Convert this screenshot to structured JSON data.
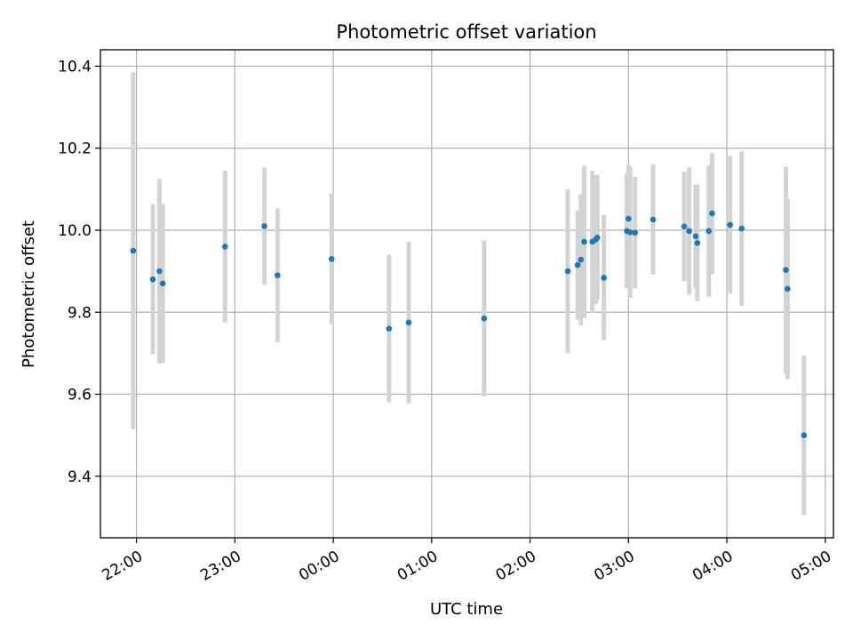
{
  "chart_data": {
    "type": "scatter",
    "title": "Photometric offset variation",
    "xlabel": "UTC time",
    "ylabel": "Photometric offset",
    "grid": true,
    "ylim": [
      9.25,
      10.44
    ],
    "xlim": [
      "21:38",
      "05:05"
    ],
    "y_ticks": [
      "9.4",
      "9.6",
      "9.8",
      "10.0",
      "10.2",
      "10.4"
    ],
    "x_ticks": [
      "22:00",
      "23:00",
      "00:00",
      "01:00",
      "02:00",
      "03:00",
      "04:00",
      "05:00"
    ],
    "colors": {
      "point": "#1f77b4",
      "errorbar": "#d3d3d3",
      "grid": "#b0b0b0"
    },
    "points": [
      {
        "x": "21:58",
        "y": 9.95,
        "err": 0.435
      },
      {
        "x": "22:10",
        "y": 9.88,
        "err": 0.183
      },
      {
        "x": "22:14",
        "y": 9.9,
        "err": 0.225
      },
      {
        "x": "22:16",
        "y": 9.87,
        "err": 0.194
      },
      {
        "x": "22:54",
        "y": 9.96,
        "err": 0.185
      },
      {
        "x": "23:18",
        "y": 10.01,
        "err": 0.143
      },
      {
        "x": "23:26",
        "y": 9.89,
        "err": 0.163
      },
      {
        "x": "23:59",
        "y": 9.93,
        "err": 0.16
      },
      {
        "x": "00:34",
        "y": 9.76,
        "err": 0.18
      },
      {
        "x": "00:46",
        "y": 9.775,
        "err": 0.197
      },
      {
        "x": "01:32",
        "y": 9.785,
        "err": 0.19
      },
      {
        "x": "02:23",
        "y": 9.9,
        "err": 0.2
      },
      {
        "x": "02:29",
        "y": 9.915,
        "err": 0.133
      },
      {
        "x": "02:31",
        "y": 9.928,
        "err": 0.16
      },
      {
        "x": "02:33",
        "y": 9.972,
        "err": 0.185
      },
      {
        "x": "02:38",
        "y": 9.972,
        "err": 0.173
      },
      {
        "x": "02:40",
        "y": 9.977,
        "err": 0.157
      },
      {
        "x": "02:41",
        "y": 9.982,
        "err": 0.153
      },
      {
        "x": "02:45",
        "y": 9.884,
        "err": 0.153
      },
      {
        "x": "02:59",
        "y": 9.998,
        "err": 0.14
      },
      {
        "x": "03:00",
        "y": 10.028,
        "err": 0.13
      },
      {
        "x": "03:01",
        "y": 9.995,
        "err": 0.16
      },
      {
        "x": "03:04",
        "y": 9.994,
        "err": 0.136
      },
      {
        "x": "03:15",
        "y": 10.026,
        "err": 0.134
      },
      {
        "x": "03:34",
        "y": 10.009,
        "err": 0.134
      },
      {
        "x": "03:37",
        "y": 9.998,
        "err": 0.155
      },
      {
        "x": "03:41",
        "y": 9.985,
        "err": 0.127
      },
      {
        "x": "03:42",
        "y": 9.969,
        "err": 0.142
      },
      {
        "x": "03:49",
        "y": 9.998,
        "err": 0.16
      },
      {
        "x": "03:51",
        "y": 10.041,
        "err": 0.148
      },
      {
        "x": "04:02",
        "y": 10.013,
        "err": 0.168
      },
      {
        "x": "04:09",
        "y": 10.004,
        "err": 0.188
      },
      {
        "x": "04:36",
        "y": 9.903,
        "err": 0.252
      },
      {
        "x": "04:37",
        "y": 9.857,
        "err": 0.22
      },
      {
        "x": "04:47",
        "y": 9.5,
        "err": 0.195
      }
    ]
  }
}
